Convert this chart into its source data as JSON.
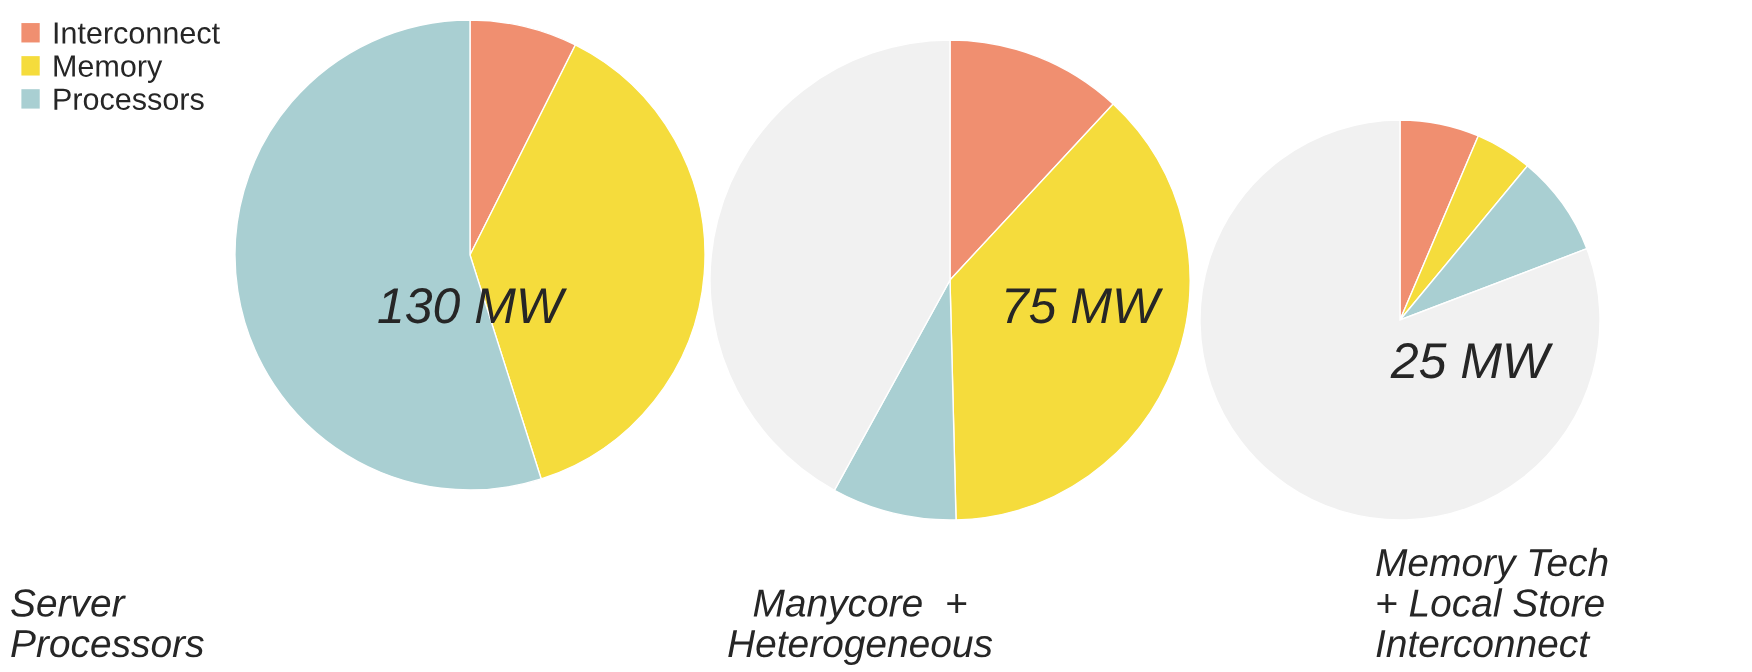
{
  "chart_data": [
    {
      "type": "pie",
      "title": "Server\nProcessors",
      "annotations": [
        "130 MW"
      ],
      "categories": [
        "Interconnect",
        "Memory",
        "Processors"
      ],
      "values": [
        7.4,
        37.7,
        54.9
      ],
      "colors": [
        "#f08f70",
        "#f5dc3c",
        "#a9cfd2"
      ],
      "legend": "top left"
    },
    {
      "type": "pie",
      "title": "Manycore  +\nHeterogeneous",
      "annotations": [
        "75 MW"
      ],
      "categories": [
        null,
        null,
        null,
        null
      ],
      "values": [
        11.9,
        37.7,
        8.4,
        42.0
      ],
      "colors": [
        "#f08f70",
        "#f5dc3c",
        "#a9cfd2",
        "#f1f1f1"
      ]
    },
    {
      "type": "pie",
      "title": "Memory Tech\n+ Local Store\nInterconnect",
      "annotations": [
        "25 MW"
      ],
      "categories": [
        null,
        null,
        null,
        null
      ],
      "values": [
        6.4,
        4.6,
        8.2,
        80.8
      ],
      "colors": [
        "#f08f70",
        "#f5dc3c",
        "#a9cfd2",
        "#f1f1f1"
      ]
    }
  ]
}
